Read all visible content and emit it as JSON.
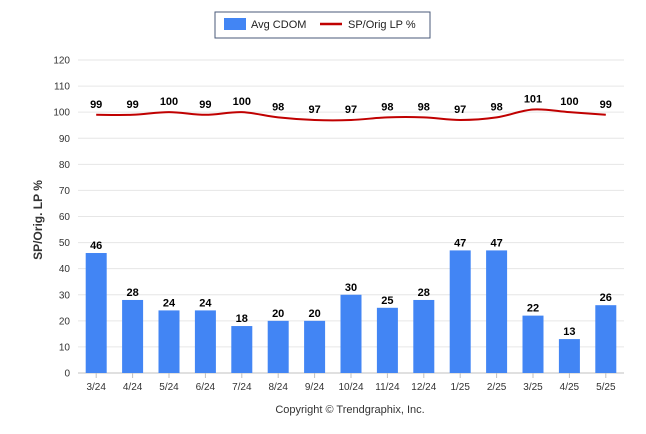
{
  "chart_data": {
    "type": "bar",
    "categories": [
      "3/24",
      "4/24",
      "5/24",
      "6/24",
      "7/24",
      "8/24",
      "9/24",
      "10/24",
      "11/24",
      "12/24",
      "1/25",
      "2/25",
      "3/25",
      "4/25",
      "5/25"
    ],
    "series": [
      {
        "name": "Avg CDOM",
        "type": "bar",
        "color": "#4285f4",
        "values": [
          46,
          28,
          24,
          24,
          18,
          20,
          20,
          30,
          25,
          28,
          47,
          47,
          22,
          13,
          26
        ]
      },
      {
        "name": "SP/Orig LP %",
        "type": "line",
        "color": "#c00000",
        "values": [
          99,
          99,
          100,
          99,
          100,
          98,
          97,
          97,
          98,
          98,
          97,
          98,
          101,
          100,
          99
        ]
      }
    ],
    "ylabel": "SP/Orig. LP %",
    "ylim": [
      0,
      120
    ],
    "yticks": [
      0,
      10,
      20,
      30,
      40,
      50,
      60,
      70,
      80,
      90,
      100,
      110,
      120
    ],
    "grid": true,
    "legend": "top-center",
    "data_labels": true
  },
  "credit": "Copyright © Trendgraphix, Inc."
}
